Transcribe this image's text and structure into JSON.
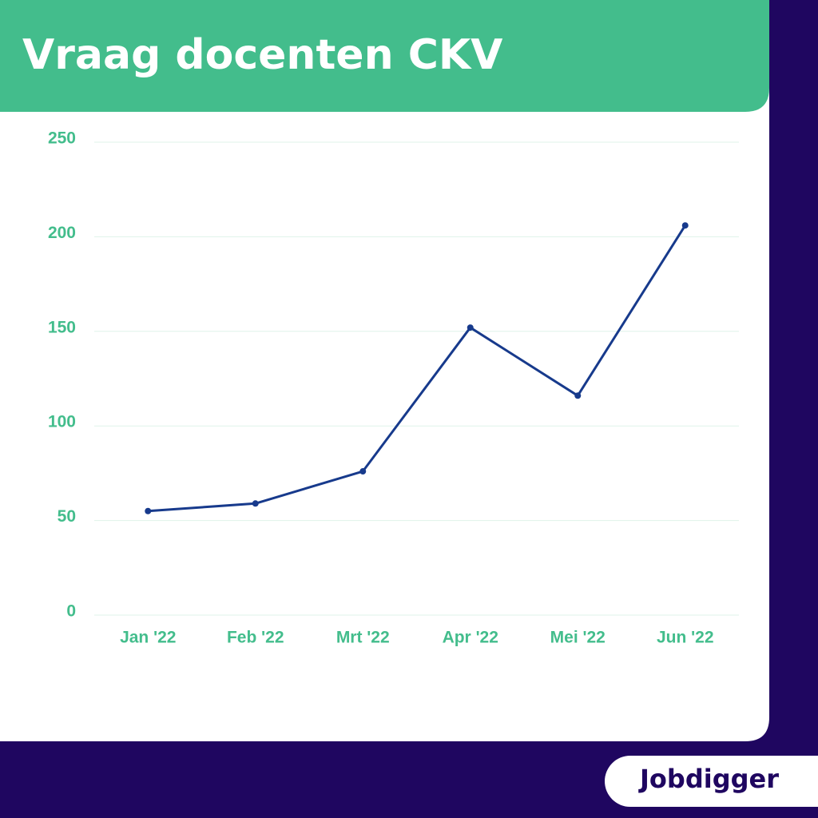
{
  "chart_data": {
    "type": "line",
    "title": "Vraag docenten CKV",
    "categories": [
      "Jan '22",
      "Feb '22",
      "Mrt '22",
      "Apr '22",
      "Mei '22",
      "Jun '22"
    ],
    "series": [
      {
        "name": "Vraag",
        "color": "#173a8c",
        "values": [
          55,
          59,
          76,
          152,
          116,
          206
        ]
      }
    ],
    "ylim": [
      0,
      250
    ],
    "yticks": [
      0,
      50,
      100,
      150,
      200,
      250
    ],
    "grid": true
  },
  "logo": "Jobdigger"
}
